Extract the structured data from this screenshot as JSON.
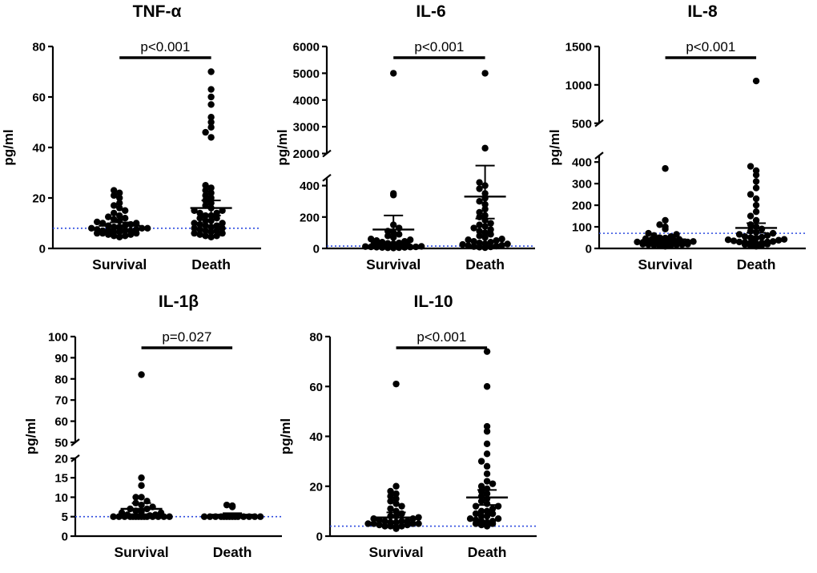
{
  "figure_title": "",
  "chart_data": [
    {
      "type": "scatter",
      "title": "TNF-α",
      "ylabel": "pg/ml",
      "p_label": "p<0.001",
      "categories": [
        "Survival",
        "Death"
      ],
      "reference_line": 8,
      "reference_color": "#2d4bdf",
      "axis": {
        "segments": [
          {
            "range": [
              0,
              80
            ],
            "frac": 1
          }
        ],
        "gap_frac": 0,
        "ticks": [
          0,
          20,
          40,
          60,
          80
        ]
      },
      "groups": [
        {
          "name": "Survival",
          "mean": 9,
          "sem": 1.3,
          "points": [
            4.5,
            5,
            5,
            5.5,
            5.5,
            6,
            6,
            6,
            6.5,
            6.5,
            7,
            7,
            7,
            7,
            7.5,
            7.5,
            8,
            8,
            8,
            8.5,
            8.5,
            9,
            9,
            9.5,
            10,
            10,
            10.5,
            11,
            11.5,
            12,
            12.5,
            13,
            14,
            15,
            16,
            17,
            18,
            20,
            21,
            22,
            23
          ]
        },
        {
          "name": "Death",
          "mean": 16,
          "sem": 3,
          "points": [
            4.5,
            5,
            5,
            5.5,
            6,
            6,
            6.5,
            7,
            7,
            7.5,
            8,
            8,
            8.5,
            9,
            9,
            9.5,
            10,
            10,
            11,
            11,
            12,
            12,
            13,
            13,
            14,
            14,
            15,
            15,
            16,
            17,
            18,
            19,
            20,
            21,
            22,
            23,
            24,
            25,
            44,
            46,
            48,
            50,
            52,
            57,
            60,
            63,
            70
          ]
        }
      ]
    },
    {
      "type": "scatter",
      "title": "IL-6",
      "ylabel": "pg/ml",
      "p_label": "p<0.001",
      "categories": [
        "Survival",
        "Death"
      ],
      "reference_line": 15,
      "reference_color": "#2d4bdf",
      "axis": {
        "segments": [
          {
            "range": [
              0,
              450
            ],
            "frac": 0.35
          },
          {
            "range": [
              2000,
              6000
            ],
            "frac": 0.53
          }
        ],
        "gap_frac": 0.12,
        "ticks": [
          0,
          200,
          400,
          2000,
          3000,
          4000,
          5000,
          6000
        ]
      },
      "groups": [
        {
          "name": "Survival",
          "mean": 120,
          "sem": 90,
          "points": [
            3,
            4,
            5,
            6,
            7,
            8,
            9,
            10,
            10,
            12,
            13,
            15,
            16,
            18,
            20,
            22,
            25,
            28,
            30,
            32,
            35,
            40,
            45,
            50,
            55,
            60,
            70,
            80,
            90,
            100,
            110,
            130,
            150,
            340,
            350,
            5000
          ]
        },
        {
          "name": "Death",
          "mean": 330,
          "sem": 140,
          "points": [
            5,
            8,
            10,
            12,
            15,
            18,
            20,
            25,
            28,
            30,
            35,
            40,
            45,
            50,
            55,
            60,
            70,
            80,
            90,
            100,
            110,
            120,
            130,
            140,
            150,
            160,
            180,
            200,
            210,
            230,
            250,
            280,
            300,
            320,
            350,
            380,
            400,
            420,
            2200,
            5000
          ]
        }
      ]
    },
    {
      "type": "scatter",
      "title": "IL-8",
      "ylabel": "pg/ml",
      "p_label": "p<0.001",
      "categories": [
        "Survival",
        "Death"
      ],
      "reference_line": 70,
      "reference_color": "#2d4bdf",
      "axis": {
        "segments": [
          {
            "range": [
              0,
              430
            ],
            "frac": 0.46
          },
          {
            "range": [
              500,
              1500
            ],
            "frac": 0.38
          }
        ],
        "gap_frac": 0.16,
        "ticks": [
          0,
          100,
          200,
          300,
          400,
          500,
          1000,
          1500
        ]
      },
      "groups": [
        {
          "name": "Survival",
          "mean": 42,
          "sem": 12,
          "points": [
            10,
            12,
            14,
            15,
            16,
            18,
            18,
            20,
            20,
            22,
            22,
            24,
            25,
            25,
            26,
            28,
            28,
            30,
            30,
            32,
            33,
            35,
            36,
            38,
            40,
            42,
            45,
            48,
            50,
            55,
            60,
            65,
            70,
            90,
            100,
            110,
            130,
            370
          ]
        },
        {
          "name": "Death",
          "mean": 95,
          "sem": 22,
          "points": [
            10,
            12,
            15,
            18,
            20,
            22,
            25,
            25,
            28,
            30,
            30,
            32,
            35,
            38,
            40,
            42,
            45,
            48,
            50,
            52,
            55,
            60,
            65,
            70,
            75,
            80,
            90,
            100,
            110,
            130,
            150,
            170,
            200,
            230,
            250,
            280,
            310,
            340,
            360,
            380,
            1050
          ]
        }
      ]
    },
    {
      "type": "scatter",
      "title": "IL-1β",
      "ylabel": "pg/ml",
      "p_label": "p=0.027",
      "categories": [
        "Survival",
        "Death"
      ],
      "reference_line": 5,
      "reference_color": "#2d4bdf",
      "axis": {
        "segments": [
          {
            "range": [
              0,
              20
            ],
            "frac": 0.39
          },
          {
            "range": [
              50,
              100
            ],
            "frac": 0.53
          }
        ],
        "gap_frac": 0.08,
        "ticks": [
          0,
          5,
          10,
          15,
          20,
          50,
          60,
          70,
          80,
          90,
          100
        ]
      },
      "groups": [
        {
          "name": "Survival",
          "mean": 7,
          "sem": 1.5,
          "points": [
            5,
            5,
            5,
            5,
            5,
            5,
            5,
            5,
            5,
            5,
            5,
            5,
            5,
            5,
            5.3,
            5.5,
            5.5,
            6,
            6,
            6.3,
            6.5,
            7,
            7,
            7.5,
            8,
            8.5,
            9,
            10,
            10,
            13,
            15,
            82
          ]
        },
        {
          "name": "Death",
          "mean": 5.5,
          "sem": 0.4,
          "points": [
            5,
            5,
            5,
            5,
            5,
            5,
            5,
            5,
            5,
            5,
            5,
            5,
            5,
            5,
            7.5,
            7.8,
            8
          ]
        }
      ]
    },
    {
      "type": "scatter",
      "title": "IL-10",
      "ylabel": "pg/ml",
      "p_label": "p<0.001",
      "categories": [
        "Survival",
        "Death"
      ],
      "reference_line": 4,
      "reference_color": "#2d4bdf",
      "axis": {
        "segments": [
          {
            "range": [
              0,
              80
            ],
            "frac": 1
          }
        ],
        "gap_frac": 0,
        "ticks": [
          0,
          20,
          40,
          60,
          80
        ]
      },
      "groups": [
        {
          "name": "Survival",
          "mean": 7.5,
          "sem": 2,
          "points": [
            3,
            3.5,
            4,
            4,
            4,
            4.5,
            4.5,
            5,
            5,
            5,
            5,
            5.5,
            5.5,
            6,
            6,
            6,
            6.5,
            7,
            7,
            7.5,
            8,
            8,
            9,
            10,
            11,
            12,
            13,
            14,
            15,
            16,
            17,
            18,
            20,
            61
          ]
        },
        {
          "name": "Death",
          "mean": 15.5,
          "sem": 3,
          "points": [
            4,
            4.5,
            5,
            5,
            5.5,
            6,
            6,
            6.5,
            7,
            7,
            8,
            8,
            9,
            9,
            10,
            10,
            11,
            12,
            12,
            13,
            14,
            15,
            16,
            17,
            18,
            19,
            20,
            21,
            22,
            25,
            28,
            30,
            33,
            37,
            42,
            44,
            60,
            74
          ]
        }
      ]
    }
  ]
}
